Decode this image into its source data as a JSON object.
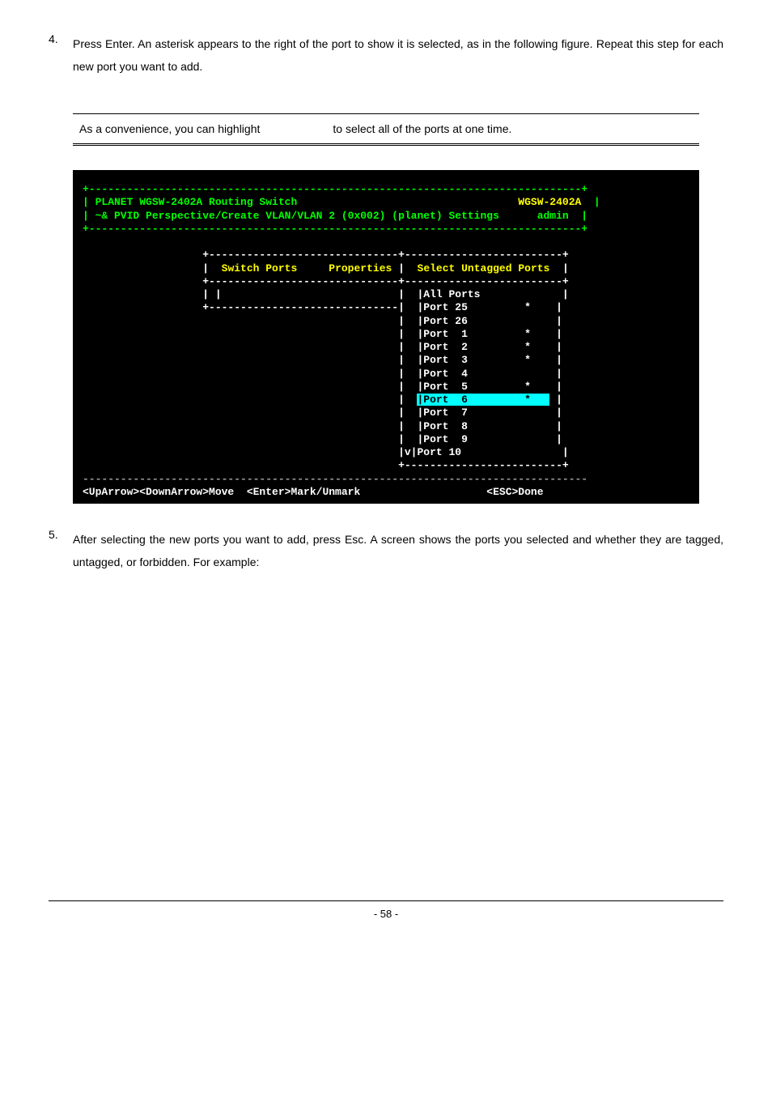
{
  "step4": {
    "num": "4.",
    "text": "Press Enter. An asterisk appears to the right of the port to show it is selected, as in the following figure. Repeat this step for each new port you want to add."
  },
  "note": {
    "left": "As a convenience, you can highlight",
    "right": "to select all of the ports at one time."
  },
  "terminal": {
    "title_line": "| PLANET WGSW-2402A Routing Switch                                   ",
    "model": "WGSW-2402A",
    "subtitle": "| ~& PVID Perspective/Create VLAN/VLAN 2 (0x002) (planet) Settings      admin  |",
    "header_left": "Switch Ports",
    "header_mid": "Properties",
    "header_right": "Select Untagged Ports",
    "ports": [
      {
        "label": "|All Ports",
        "mark": ""
      },
      {
        "label": "|Port 25",
        "mark": "*"
      },
      {
        "label": "|Port 26",
        "mark": ""
      },
      {
        "label": "|Port  1",
        "mark": "*"
      },
      {
        "label": "|Port  2",
        "mark": "*"
      },
      {
        "label": "|Port  3",
        "mark": "*"
      },
      {
        "label": "|Port  4",
        "mark": ""
      },
      {
        "label": "|Port  5",
        "mark": "*"
      }
    ],
    "selected": {
      "label": "|Port  6",
      "mark": "*"
    },
    "ports_after": [
      {
        "label": "|Port  7",
        "mark": ""
      },
      {
        "label": "|Port  8",
        "mark": ""
      },
      {
        "label": "|Port  9",
        "mark": ""
      },
      {
        "label": "|v|Port 10",
        "mark": ""
      }
    ],
    "footer_keys": "<UpArrow><DownArrow>Move  <Enter>Mark/Unmark",
    "footer_right": "<ESC>Done"
  },
  "step5": {
    "num": "5.",
    "text": "After selecting the new ports you want to add, press Esc. A screen shows the ports you selected and whether they are tagged, untagged, or forbidden. For example:"
  },
  "page_num": "- 58 -"
}
